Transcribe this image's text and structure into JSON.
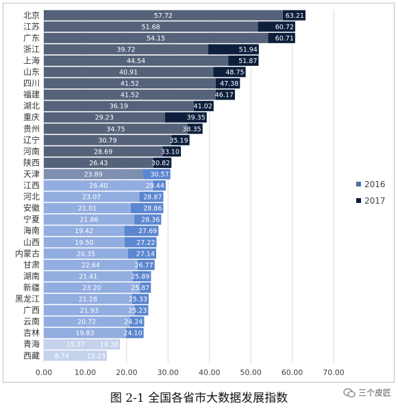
{
  "chart_data": {
    "type": "bar",
    "orientation": "horizontal",
    "title": "",
    "categories": [
      "北京",
      "江苏",
      "广东",
      "浙江",
      "上海",
      "山东",
      "四川",
      "福建",
      "湖北",
      "重庆",
      "贵州",
      "辽宁",
      "河南",
      "陕西",
      "天津",
      "江西",
      "河北",
      "安徽",
      "宁夏",
      "海南",
      "山西",
      "内蒙古",
      "甘肃",
      "湖南",
      "新疆",
      "黑龙江",
      "广西",
      "云南",
      "吉林",
      "青海",
      "西藏"
    ],
    "series": [
      {
        "name": "2016",
        "values": [
          57.72,
          51.68,
          54.15,
          39.72,
          44.54,
          40.91,
          41.52,
          41.52,
          36.19,
          29.23,
          34.75,
          30.79,
          28.69,
          26.43,
          23.89,
          26.4,
          23.07,
          21.01,
          21.86,
          19.42,
          19.5,
          20.35,
          22.64,
          21.41,
          23.2,
          21.28,
          21.93,
          20.72,
          19.83,
          15.37,
          8.74
        ]
      },
      {
        "name": "2017",
        "values": [
          63.21,
          60.72,
          60.71,
          51.94,
          51.87,
          48.75,
          47.38,
          46.17,
          41.02,
          39.35,
          38.35,
          35.19,
          33.1,
          30.82,
          30.57,
          29.44,
          28.87,
          28.86,
          28.36,
          27.69,
          27.22,
          27.14,
          26.77,
          25.89,
          25.87,
          25.33,
          25.23,
          24.24,
          24.1,
          18.38,
          15.23
        ]
      }
    ],
    "x_ticks": [
      "0.00",
      "10.00",
      "20.00",
      "30.00",
      "40.00",
      "50.00",
      "60.00",
      "70.00"
    ],
    "xlim": [
      0,
      70
    ],
    "grid": "vertical",
    "legend": {
      "position": "right",
      "entries": [
        "2016",
        "2017"
      ]
    },
    "colors": {
      "bar_2017_dark": "#0d1f3c",
      "bar_2017_mid": "#2a4d7e",
      "bar_2016_dark": "#56627a",
      "bar_2016_mid": "#7f8fb0",
      "bar_2016_light": "#92ade0",
      "bar_2017_light": "#5b86d0",
      "bar_2016_pale": "#c5d2ec",
      "legend_2016": "#4a6fa5",
      "legend_2017": "#0d1f3c"
    }
  },
  "caption": "图 2-1 全国各省市大数据发展指数",
  "watermark": "三个皮匠",
  "watermark_icon": "wechat-icon"
}
